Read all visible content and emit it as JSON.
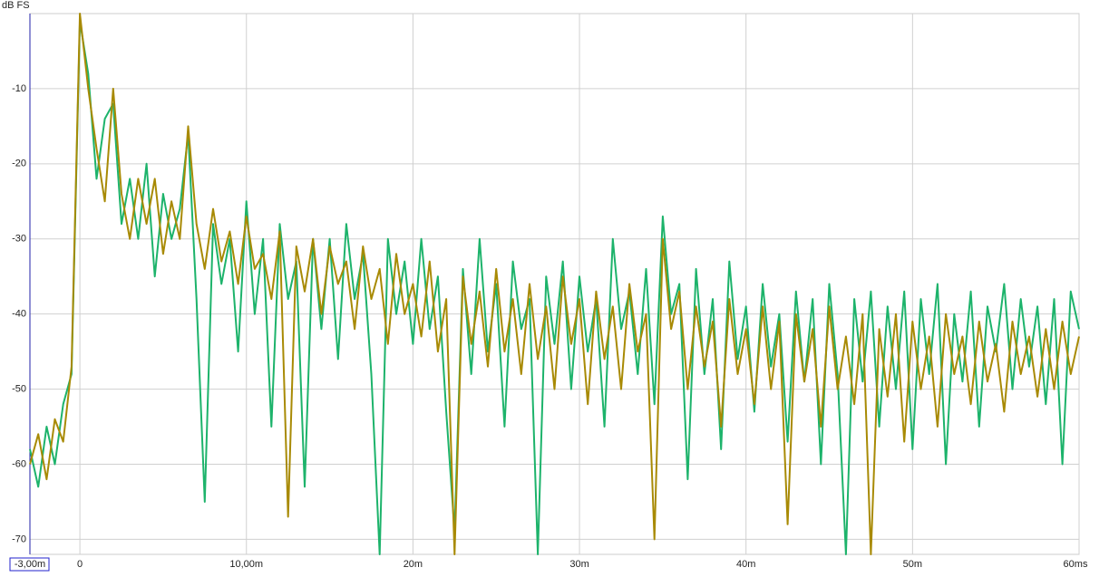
{
  "chart_data": {
    "type": "line",
    "ylabel": "dB FS",
    "xlim": [
      -3,
      60
    ],
    "ylim": [
      -72,
      0
    ],
    "xticks": [
      {
        "value": -3,
        "label": "-3,00m"
      },
      0,
      {
        "value": 10,
        "label": "10,00m"
      },
      {
        "value": 20,
        "label": "20m"
      },
      {
        "value": 30,
        "label": "30m"
      },
      {
        "value": 40,
        "label": "40m"
      },
      {
        "value": 50,
        "label": "50m"
      },
      {
        "value": 60,
        "label": "60ms"
      }
    ],
    "yticks": [
      -70,
      -60,
      -50,
      -40,
      -30,
      -20,
      -10
    ],
    "grid": true,
    "x": [
      -3,
      -2.5,
      -2,
      -1.5,
      -1,
      -0.5,
      0,
      0.5,
      1,
      1.5,
      2,
      2.5,
      3,
      3.5,
      4,
      4.5,
      5,
      5.5,
      6,
      6.5,
      7,
      7.5,
      8,
      8.5,
      9,
      9.5,
      10,
      10.5,
      11,
      11.5,
      12,
      12.5,
      13,
      13.5,
      14,
      14.5,
      15,
      15.5,
      16,
      16.5,
      17,
      17.5,
      18,
      18.5,
      19,
      19.5,
      20,
      20.5,
      21,
      21.5,
      22,
      22.5,
      23,
      23.5,
      24,
      24.5,
      25,
      25.5,
      26,
      26.5,
      27,
      27.5,
      28,
      28.5,
      29,
      29.5,
      30,
      30.5,
      31,
      31.5,
      32,
      32.5,
      33,
      33.5,
      34,
      34.5,
      35,
      35.5,
      36,
      36.5,
      37,
      37.5,
      38,
      38.5,
      39,
      39.5,
      40,
      40.5,
      41,
      41.5,
      42,
      42.5,
      43,
      43.5,
      44,
      44.5,
      45,
      45.5,
      46,
      46.5,
      47,
      47.5,
      48,
      48.5,
      49,
      49.5,
      50,
      50.5,
      51,
      51.5,
      52,
      52.5,
      53,
      53.5,
      54,
      54.5,
      55,
      55.5,
      56,
      56.5,
      57,
      57.5,
      58,
      58.5,
      59,
      59.5,
      60
    ],
    "series": [
      {
        "color": "#1db36b",
        "values": [
          -58,
          -63,
          -55,
          -60,
          -52,
          -48,
          -1,
          -8,
          -22,
          -14,
          -12,
          -28,
          -22,
          -30,
          -20,
          -35,
          -24,
          -30,
          -26,
          -16,
          -38,
          -65,
          -28,
          -36,
          -30,
          -45,
          -25,
          -40,
          -30,
          -55,
          -28,
          -38,
          -33,
          -63,
          -30,
          -42,
          -30,
          -46,
          -28,
          -38,
          -32,
          -48,
          -72,
          -30,
          -40,
          -33,
          -44,
          -30,
          -42,
          -35,
          -53,
          -69,
          -34,
          -48,
          -30,
          -45,
          -36,
          -55,
          -33,
          -42,
          -38,
          -72,
          -35,
          -44,
          -33,
          -50,
          -35,
          -45,
          -38,
          -55,
          -30,
          -42,
          -37,
          -48,
          -34,
          -52,
          -27,
          -40,
          -36,
          -62,
          -34,
          -48,
          -38,
          -58,
          -33,
          -46,
          -39,
          -53,
          -36,
          -47,
          -40,
          -57,
          -37,
          -49,
          -38,
          -60,
          -36,
          -48,
          -72,
          -38,
          -49,
          -37,
          -55,
          -39,
          -50,
          -37,
          -58,
          -38,
          -48,
          -36,
          -60,
          -40,
          -49,
          -37,
          -55,
          -39,
          -45,
          -36,
          -50,
          -38,
          -47,
          -39,
          -52,
          -38,
          -60,
          -37,
          -42
        ]
      },
      {
        "color": "#a88a05",
        "values": [
          -60,
          -56,
          -62,
          -54,
          -57,
          -47,
          0,
          -10,
          -18,
          -25,
          -10,
          -24,
          -30,
          -22,
          -28,
          -22,
          -32,
          -25,
          -30,
          -15,
          -28,
          -34,
          -26,
          -33,
          -29,
          -36,
          -27,
          -34,
          -32,
          -38,
          -29,
          -67,
          -31,
          -37,
          -30,
          -40,
          -31,
          -36,
          -33,
          -42,
          -31,
          -38,
          -34,
          -44,
          -32,
          -40,
          -36,
          -43,
          -33,
          -45,
          -38,
          -72,
          -35,
          -44,
          -37,
          -47,
          -34,
          -45,
          -38,
          -48,
          -36,
          -46,
          -39,
          -50,
          -35,
          -44,
          -38,
          -52,
          -37,
          -46,
          -39,
          -50,
          -36,
          -45,
          -40,
          -70,
          -30,
          -42,
          -37,
          -50,
          -39,
          -47,
          -41,
          -55,
          -38,
          -48,
          -42,
          -52,
          -39,
          -50,
          -41,
          -68,
          -40,
          -49,
          -42,
          -55,
          -39,
          -50,
          -43,
          -52,
          -40,
          -72,
          -42,
          -51,
          -40,
          -57,
          -41,
          -50,
          -43,
          -55,
          -40,
          -48,
          -43,
          -52,
          -41,
          -49,
          -44,
          -53,
          -41,
          -48,
          -43,
          -51,
          -42,
          -50,
          -41,
          -48,
          -43
        ]
      }
    ]
  }
}
